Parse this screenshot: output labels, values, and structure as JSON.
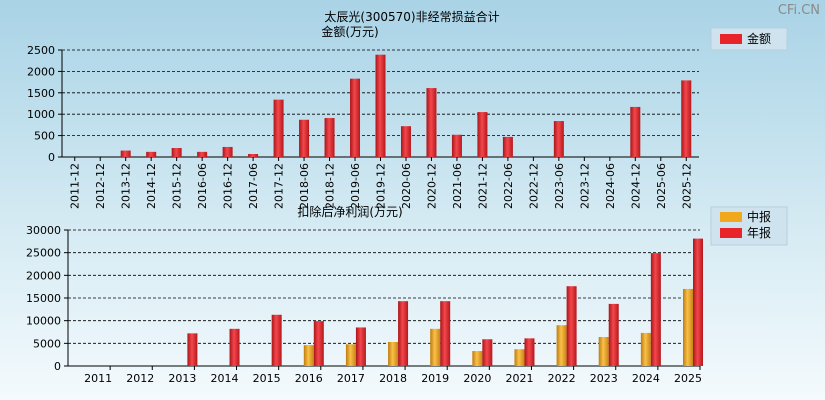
{
  "watermark": "CFi.CN",
  "chart_data": [
    {
      "type": "bar",
      "title": "太辰光(300570)非经常损益合计",
      "ylabel": "金额(万元)",
      "ylim": [
        0,
        2500
      ],
      "yticks": [
        0,
        500,
        1000,
        1500,
        2000,
        2500
      ],
      "grid": true,
      "legend": "right",
      "categories": [
        "2011-12",
        "2012-12",
        "2013-12",
        "2014-12",
        "2015-12",
        "2016-06",
        "2016-12",
        "2017-06",
        "2017-12",
        "2018-06",
        "2018-12",
        "2019-06",
        "2019-12",
        "2020-06",
        "2020-12",
        "2021-06",
        "2021-12",
        "2022-06",
        "2022-12",
        "2023-06",
        "2023-12",
        "2024-06",
        "2024-12",
        "2025-06",
        "2025-12"
      ],
      "series": [
        {
          "name": "金额",
          "color": "#e8242a",
          "values": [
            0,
            0,
            150,
            120,
            210,
            120,
            235,
            70,
            1340,
            870,
            910,
            1830,
            2390,
            720,
            1610,
            520,
            1050,
            470,
            0,
            840,
            0,
            0,
            1170,
            0,
            1790
          ]
        }
      ]
    },
    {
      "type": "bar",
      "title": "扣除后净利润(万元)",
      "ylim": [
        0,
        30000
      ],
      "yticks": [
        0,
        5000,
        10000,
        15000,
        20000,
        25000,
        30000
      ],
      "grid": true,
      "legend": "right",
      "categories": [
        "2011",
        "2012",
        "2013",
        "2014",
        "2015",
        "2016",
        "2017",
        "2018",
        "2019",
        "2020",
        "2021",
        "2022",
        "2023",
        "2024",
        "2025"
      ],
      "series": [
        {
          "name": "中报",
          "color": "#f2a81d",
          "values": [
            0,
            0,
            0,
            0,
            0,
            4600,
            4800,
            5300,
            8200,
            3300,
            3700,
            9000,
            6400,
            7300,
            17000
          ]
        },
        {
          "name": "年报",
          "color": "#e8242a",
          "values": [
            0,
            0,
            7200,
            8200,
            11300,
            9900,
            8500,
            14300,
            14300,
            5900,
            6100,
            17600,
            13700,
            24900,
            28100
          ]
        }
      ]
    }
  ]
}
